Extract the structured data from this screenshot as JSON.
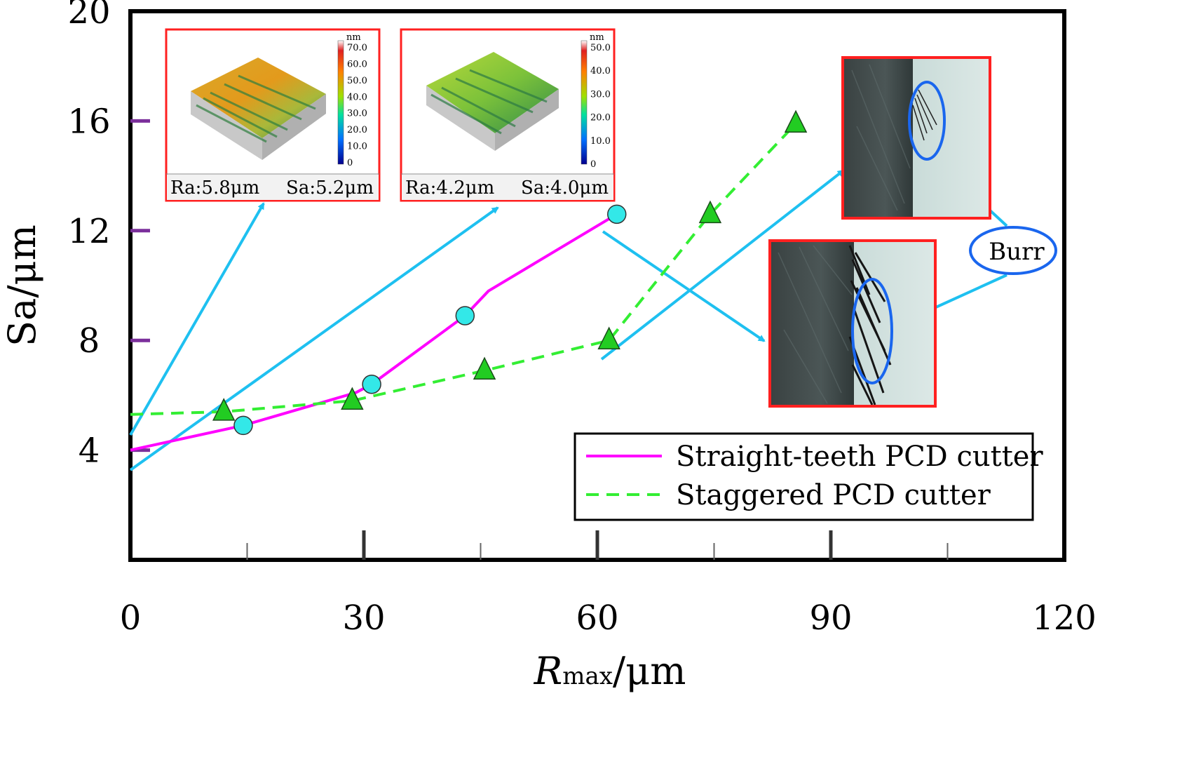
{
  "chart_data": {
    "type": "line",
    "xlabel_main": "R",
    "xlabel_sub": "max",
    "xlabel_unit": "/μm",
    "ylabel": "Sa/μm",
    "xlim": [
      0,
      120
    ],
    "ylim": [
      0,
      20
    ],
    "x_ticks": [
      0,
      30,
      60,
      90,
      120
    ],
    "x_minor_ticks": [
      15,
      30,
      45,
      60,
      75,
      90,
      105
    ],
    "y_ticks": [
      4,
      8,
      12,
      16,
      20
    ],
    "series": [
      {
        "name": "Straight-teeth PCD cutter",
        "color": "#ff00ff",
        "marker": "circle",
        "marker_color": "#33e8e8",
        "line_x": [
          0,
          14.5,
          29,
          31,
          43,
          46,
          62.5
        ],
        "line_y": [
          4.0,
          4.9,
          6.1,
          6.4,
          8.9,
          9.8,
          12.6
        ],
        "marker_x": [
          14.5,
          31,
          43,
          62.5
        ],
        "marker_y": [
          4.9,
          6.4,
          8.9,
          12.6
        ]
      },
      {
        "name": "Staggered PCD cutter",
        "color": "#33ee33",
        "marker": "triangle",
        "marker_color": "#22cc22",
        "line_x": [
          0,
          12,
          28.5,
          45.5,
          61.5,
          74.5,
          85.5
        ],
        "line_y": [
          5.3,
          5.4,
          5.8,
          6.9,
          8.0,
          12.6,
          15.9
        ],
        "marker_x": [
          12,
          28.5,
          45.5,
          61.5,
          74.5,
          85.5
        ],
        "marker_y": [
          5.4,
          5.8,
          6.9,
          8.0,
          12.6,
          15.9
        ]
      }
    ],
    "legend_position": "bottom-right",
    "annotations": {
      "inset1": {
        "ra": "Ra:5.8μm",
        "sa": "Sa:5.2μm",
        "scale_unit": "nm",
        "scale": [
          "70.0",
          "60.0",
          "50.0",
          "40.0",
          "30.0",
          "20.0",
          "10.0",
          "0"
        ]
      },
      "inset2": {
        "ra": "Ra:4.2μm",
        "sa": "Sa:4.0μm",
        "scale_unit": "nm",
        "scale": [
          "50.0",
          "40.0",
          "30.0",
          "20.0",
          "10.0",
          "0"
        ]
      },
      "burr_label": "Burr"
    },
    "annotation_arrow_color": "#1ec0f0",
    "inset_border_color": "#ff2020",
    "burr_ellipse_color": "#1a66ee"
  }
}
